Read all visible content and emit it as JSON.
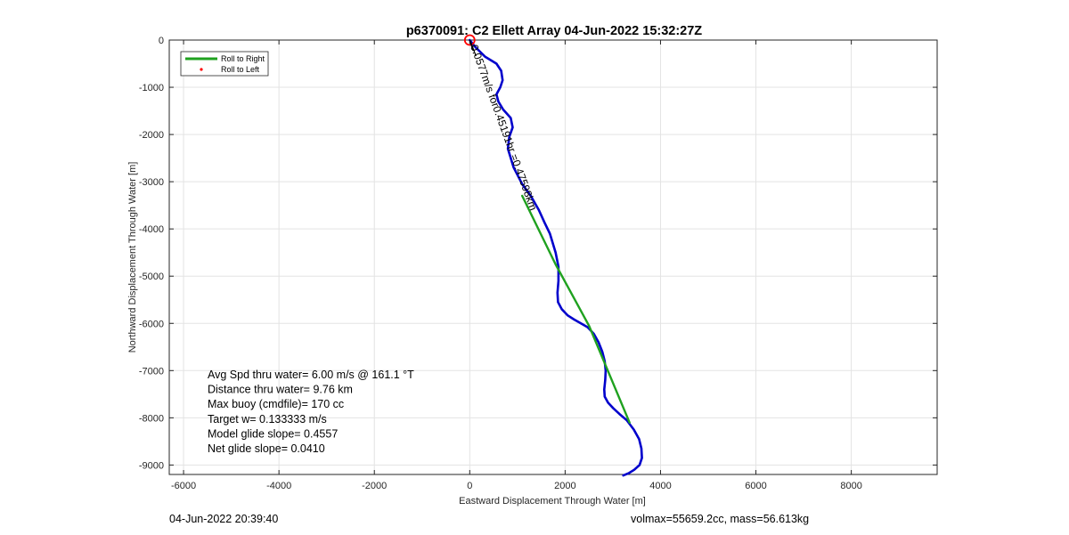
{
  "chart_data": {
    "type": "line",
    "title": "p6370091: C2 Ellett Array 04-Jun-2022 15:32:27Z",
    "xlabel": "Eastward Displacement Through Water [m]",
    "ylabel": "Northward Displacement Through Water [m]",
    "xlim": [
      -6300,
      9800
    ],
    "ylim": [
      -9200,
      0
    ],
    "xticks": [
      -6000,
      -4000,
      -2000,
      0,
      2000,
      4000,
      6000,
      8000
    ],
    "xtick_labels": [
      "-6000",
      "-4000",
      "-2000",
      "0",
      "2000",
      "4000",
      "6000",
      "8000"
    ],
    "yticks": [
      0,
      -1000,
      -2000,
      -3000,
      -4000,
      -5000,
      -6000,
      -7000,
      -8000,
      -9000
    ],
    "ytick_labels": [
      "0",
      "-1000",
      "-2000",
      "-3000",
      "-4000",
      "-5000",
      "-6000",
      "-7000",
      "-8000",
      "-9000"
    ],
    "grid": true,
    "legend_position": "top-left",
    "legend": [
      {
        "label": "Roll to Right",
        "color": "#1fa11f",
        "marker": "line"
      },
      {
        "label": "Roll to Left",
        "color": "#ff0000",
        "marker": "dot"
      }
    ],
    "series": [
      {
        "color": "#0000cc",
        "x": [
          0,
          120,
          320,
          560,
          660,
          690,
          640,
          560,
          600,
          700,
          860,
          900,
          830,
          800,
          920,
          1100,
          1280,
          1450,
          1570,
          1680,
          1800,
          1860,
          1860,
          1840,
          1850,
          1930,
          2050,
          2190,
          2330,
          2470,
          2600,
          2700,
          2780,
          2830,
          2850,
          2840,
          2820,
          2830,
          2900,
          3010,
          3140,
          3290,
          3440,
          3550,
          3600,
          3610,
          3560,
          3450,
          3340,
          3220
        ],
        "y": [
          0,
          -150,
          -350,
          -500,
          -650,
          -850,
          -1000,
          -1150,
          -1300,
          -1470,
          -1650,
          -1850,
          -2050,
          -2300,
          -2700,
          -3050,
          -3300,
          -3600,
          -3870,
          -4100,
          -4500,
          -4800,
          -5100,
          -5350,
          -5550,
          -5700,
          -5830,
          -5920,
          -6000,
          -6080,
          -6220,
          -6400,
          -6600,
          -6800,
          -7000,
          -7200,
          -7400,
          -7550,
          -7680,
          -7800,
          -7920,
          -8050,
          -8250,
          -8450,
          -8650,
          -8850,
          -9000,
          -9100,
          -9170,
          -9220
        ]
      },
      {
        "color": "#1fa11f",
        "x": [
          1100,
          1800,
          2500,
          3350
        ],
        "y": [
          -3300,
          -4750,
          -6050,
          -8100
        ]
      }
    ],
    "annotations": {
      "path_label": "0.0577m/s for0.45191hr =0.47598km",
      "stats": [
        "Avg Spd thru water=  6.00 m/s @ 161.1 °T",
        "Distance thru water=  9.76 km",
        "Max buoy (cmdfile)= 170 cc",
        "Target w= 0.133333 m/s",
        "Model glide slope= 0.4557",
        "Net glide slope= 0.0410"
      ]
    }
  },
  "footer": {
    "left": "04-Jun-2022 20:39:40",
    "right": "volmax=55659.2cc, mass=56.613kg"
  }
}
